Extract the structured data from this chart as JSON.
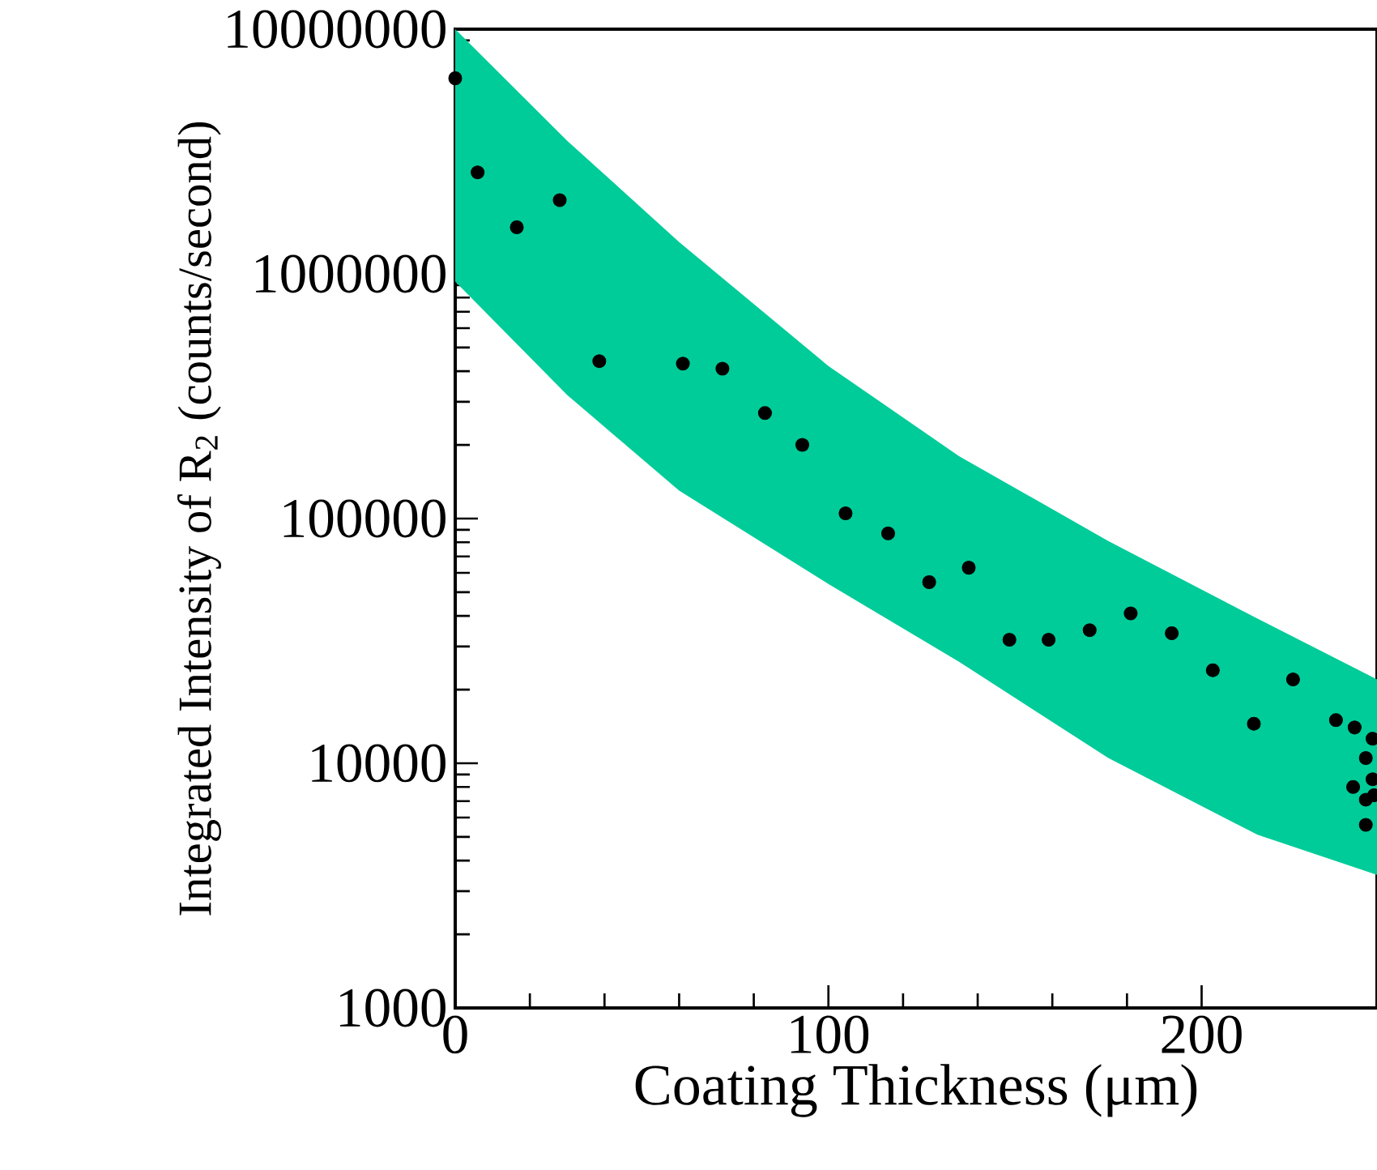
{
  "chart_data": {
    "type": "scatter",
    "xlabel": "Coating Thickness (μm)",
    "ylabel": "Integrated Intensity of R$_{2}$ (counts/second)",
    "xlim": [
      0,
      247
    ],
    "ylim": [
      1000,
      10000000
    ],
    "xticks": [
      0,
      100,
      200
    ],
    "yticks": [
      1000,
      10000,
      100000,
      1000000,
      10000000
    ],
    "log": "y",
    "grid": false,
    "marker": "circle",
    "series": [
      {
        "type": "area",
        "color": "#00cc99",
        "x": [
          0,
          30,
          60,
          100,
          135,
          175,
          215,
          247
        ],
        "values": [
          null,
          null,
          null,
          null,
          null,
          null,
          null,
          null
        ],
        "lower": [
          930000,
          320000,
          130000,
          54000,
          26000,
          10500,
          5100,
          3500
        ],
        "upper": [
          10000000,
          3500000,
          1350000,
          420000,
          180000,
          81000,
          39000,
          22000
        ]
      },
      {
        "type": "scatter",
        "color": "#000000",
        "x": [
          0,
          6,
          16.5,
          28,
          38.6,
          61,
          71.6,
          83,
          93,
          104.6,
          116,
          127,
          137.6,
          148.5,
          159,
          170,
          181,
          192,
          203,
          214,
          224.5,
          236,
          241,
          245.8,
          244,
          245.8,
          240.6,
          244,
          244,
          246.2
        ],
        "values": [
          6300000,
          2600000,
          1550000,
          2000000,
          440000,
          430000,
          410000,
          270000,
          200000,
          105000,
          87000,
          55000,
          63000,
          32000,
          32000,
          35000,
          41000,
          34000,
          24000,
          14500,
          22000,
          15000,
          14000,
          12600,
          10500,
          8600,
          8000,
          7100,
          5600,
          7400
        ]
      }
    ]
  }
}
